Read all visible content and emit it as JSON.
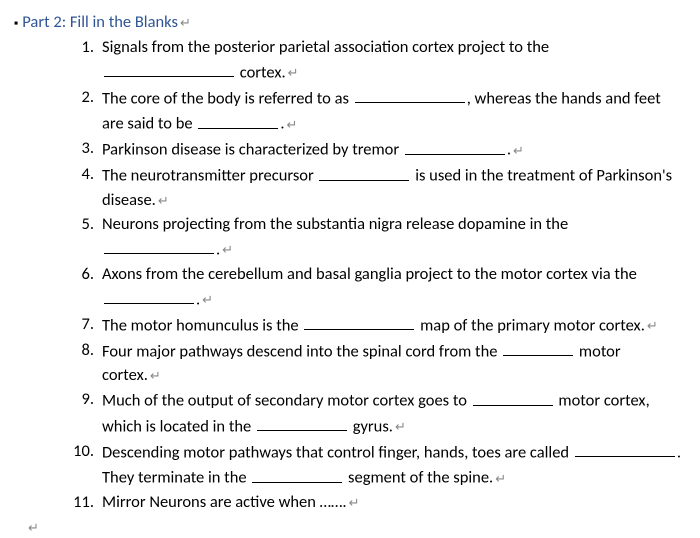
{
  "heading": "Part 2: Fill in the Blanks",
  "return_glyph": "↵",
  "items": [
    {
      "num": "1.",
      "segs": [
        "Signals from the posterior parietal association cortex project to the ",
        {
          "blank": 130
        },
        " cortex."
      ],
      "ret": true
    },
    {
      "num": "2.",
      "segs": [
        "The core of the body is referred to as ",
        {
          "blank": 110
        },
        ", whereas the hands and feet are said to be ",
        {
          "blank": 80
        },
        "."
      ],
      "ret": true
    },
    {
      "num": "3.",
      "segs": [
        "Parkinson disease is characterized by tremor ",
        {
          "blank": 100
        },
        "."
      ],
      "ret": true
    },
    {
      "num": "4.",
      "segs": [
        "The neurotransmitter precursor ",
        {
          "blank": 90
        },
        " is used in the treatment of Parkinson's disease."
      ],
      "ret": true
    },
    {
      "num": "5.",
      "segs": [
        "Neurons projecting from the substantia nigra release dopamine in the ",
        {
          "blank": 110
        },
        "."
      ],
      "ret": true
    },
    {
      "num": "6.",
      "segs": [
        "Axons from the cerebellum and basal ganglia project to the motor cortex via the ",
        {
          "blank": 90
        },
        "."
      ],
      "ret": true
    },
    {
      "num": "7.",
      "segs": [
        "The motor homunculus is the ",
        {
          "blank": 110
        },
        " map of the primary motor cortex."
      ],
      "ret": true
    },
    {
      "num": "8.",
      "segs": [
        "Four major pathways descend into the spinal cord from the ",
        {
          "blank": 70
        },
        " motor cortex."
      ],
      "ret": true
    },
    {
      "num": "9.",
      "segs": [
        "Much of the output of secondary motor cortex goes to ",
        {
          "blank": 80
        },
        " motor cortex, which is located in the ",
        {
          "blank": 90
        },
        " gyrus."
      ],
      "ret": true
    },
    {
      "num": "10.",
      "segs": [
        "Descending motor pathways that control finger, hands, toes are called ",
        {
          "blank": 100
        },
        ". They terminate in the ",
        {
          "blank": 90
        },
        " segment of the spine."
      ],
      "ret": true
    },
    {
      "num": "11.",
      "segs": [
        "Mirror Neurons are active when ……."
      ],
      "ret": true
    }
  ]
}
